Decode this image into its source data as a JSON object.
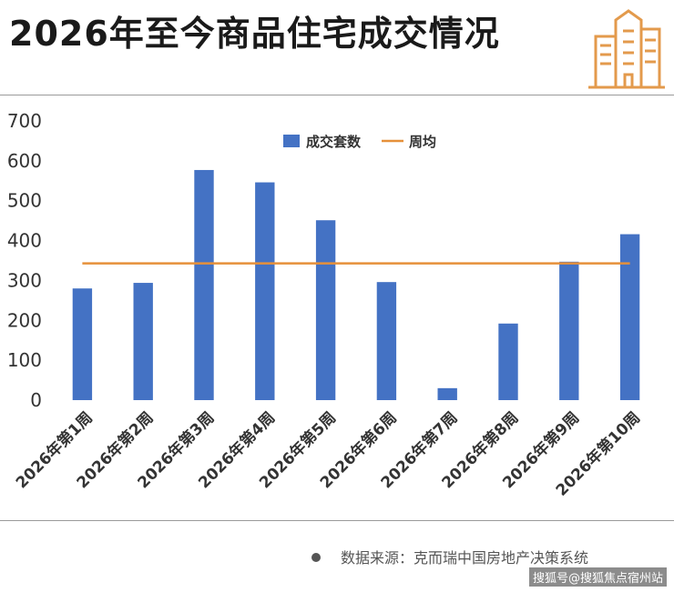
{
  "title": "2026年至今商品住宅成交情况",
  "source": "数据来源：克而瑞中国房地产决策系统",
  "credit": "搜狐号@搜狐焦点宿州站",
  "logo_icon": "buildings-icon",
  "colors": {
    "bar": "#4472c4",
    "line": "#e6903a",
    "accent": "#e39a4c"
  },
  "chart_data": {
    "type": "bar",
    "categories": [
      "2026年第1周",
      "2026年第2周",
      "2026年第3周",
      "2026年第4周",
      "2026年第5周",
      "2026年第6周",
      "2026年第7周",
      "2026年第8周",
      "2026年第9周",
      "2026年第10周"
    ],
    "series": [
      {
        "name": "成交套数",
        "type": "bar",
        "values": [
          280,
          294,
          577,
          546,
          451,
          296,
          30,
          192,
          347,
          416
        ]
      },
      {
        "name": "周均",
        "type": "line",
        "values": [
          343,
          343,
          343,
          343,
          343,
          343,
          343,
          343,
          343,
          343
        ]
      }
    ],
    "yticks": [
      0,
      100,
      200,
      300,
      400,
      500,
      600,
      700
    ],
    "ylim": [
      0,
      700
    ],
    "grid": false,
    "legend": "top-center"
  }
}
